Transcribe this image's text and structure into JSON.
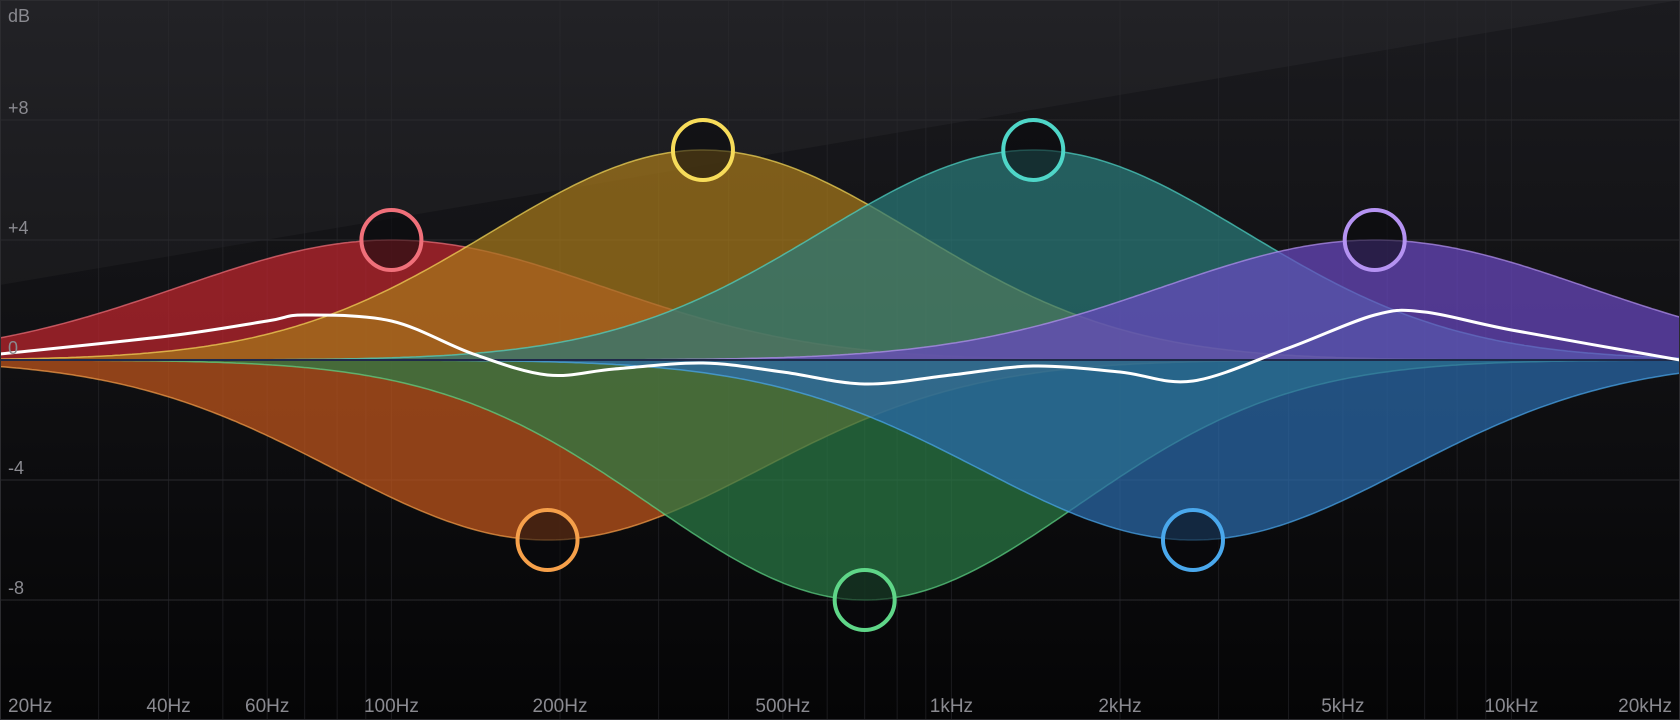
{
  "app": {
    "title": "",
    "unit_label": "dB"
  },
  "theme": {
    "background_top": "#1b1b1f",
    "background_bottom": "#050506",
    "grid": "#2a2a2e",
    "zero_line": "#1f2a4a",
    "response_curve": "#ffffff"
  },
  "axes": {
    "db_labels": [
      "+8",
      "+4",
      "0",
      "-4",
      "-8"
    ],
    "db_values": [
      8,
      4,
      0,
      -4,
      -8
    ],
    "freq_labels": [
      "20Hz",
      "40Hz",
      "60Hz",
      "100Hz",
      "200Hz",
      "500Hz",
      "1kHz",
      "2kHz",
      "5kHz",
      "10kHz",
      "20kHz"
    ],
    "freq_values": [
      20,
      40,
      60,
      100,
      200,
      500,
      1000,
      2000,
      5000,
      10000,
      20000
    ],
    "db_range": [
      -12,
      12
    ],
    "freq_range": [
      20,
      20000
    ],
    "scale": "log"
  },
  "chart_data": {
    "type": "area",
    "x_scale": "log",
    "xlabel": "",
    "ylabel": "dB",
    "xlim": [
      20,
      20000
    ],
    "ylim": [
      -12,
      12
    ],
    "series": [
      {
        "freq": 100,
        "gain": 4,
        "color": "#f0707a",
        "fill": "#c0262e"
      },
      {
        "freq": 190,
        "gain": -6,
        "color": "#f6a04a",
        "fill": "#c2561c"
      },
      {
        "freq": 360,
        "gain": 7,
        "color": "#f7dc5a",
        "fill": "#a6781a"
      },
      {
        "freq": 700,
        "gain": -8,
        "color": "#5fd688",
        "fill": "#2a7a45"
      },
      {
        "freq": 1400,
        "gain": 7,
        "color": "#4fd6c8",
        "fill": "#2a7a78"
      },
      {
        "freq": 2700,
        "gain": -6,
        "color": "#4aa8ec",
        "fill": "#2a6aab"
      },
      {
        "freq": 5700,
        "gain": 4,
        "color": "#b593f2",
        "fill": "#6a48c0"
      }
    ],
    "response": {
      "x": [
        20,
        40,
        60,
        70,
        100,
        140,
        190,
        250,
        360,
        500,
        700,
        1000,
        1400,
        2000,
        2700,
        4000,
        5700,
        7000,
        10000,
        20000
      ],
      "y": [
        0.2,
        0.8,
        1.3,
        1.5,
        1.3,
        0.2,
        -0.5,
        -0.3,
        -0.1,
        -0.4,
        -0.8,
        -0.5,
        -0.2,
        -0.4,
        -0.7,
        0.4,
        1.5,
        1.6,
        1.0,
        0.0
      ]
    }
  }
}
